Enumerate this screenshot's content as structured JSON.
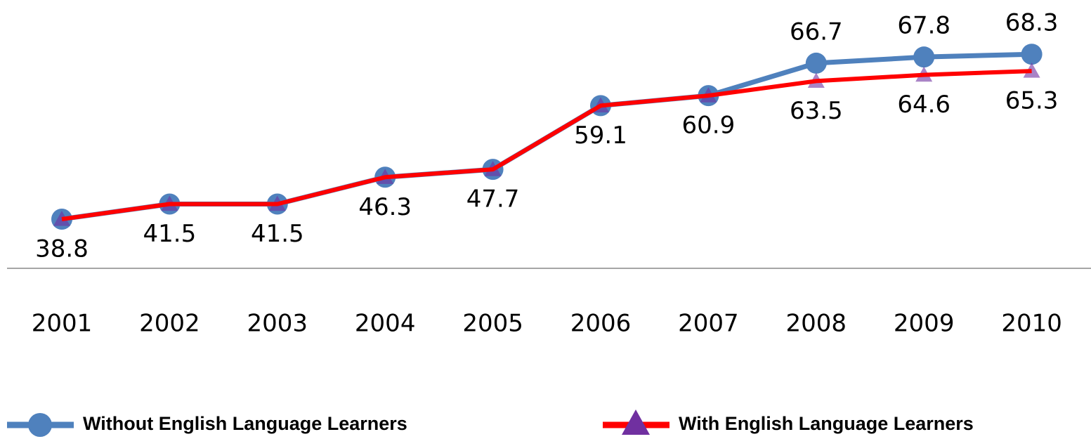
{
  "chart_data": {
    "type": "line",
    "categories": [
      "2001",
      "2002",
      "2003",
      "2004",
      "2005",
      "2006",
      "2007",
      "2008",
      "2009",
      "2010"
    ],
    "series": [
      {
        "name": "Without English Language Learners",
        "color": "#4f81bd",
        "marker_color": "#4f81bd",
        "values": [
          38.8,
          41.5,
          41.5,
          46.3,
          47.7,
          59.1,
          60.9,
          66.7,
          67.8,
          68.3
        ]
      },
      {
        "name": "With English Language Learners",
        "color": "#ff0000",
        "marker_color": "#7030a0",
        "values": [
          38.8,
          41.5,
          41.5,
          46.3,
          47.7,
          59.1,
          60.9,
          63.5,
          64.6,
          65.3
        ]
      }
    ],
    "ylim": [
      30,
      78
    ],
    "legend": "bottom"
  }
}
